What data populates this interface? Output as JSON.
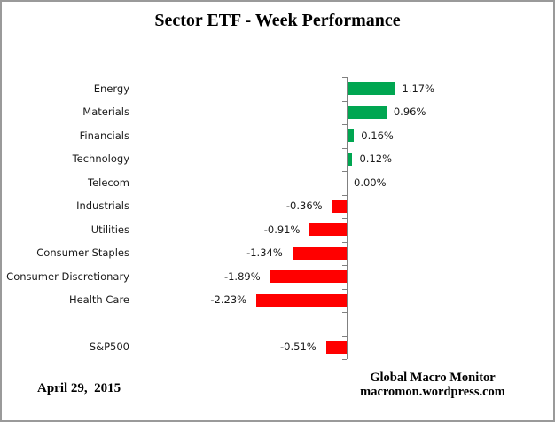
{
  "chart_data": {
    "type": "bar",
    "orientation": "horizontal",
    "title": "Sector ETF - Week Performance",
    "unit": "%",
    "xlim": [
      -2.5,
      1.5
    ],
    "grid": false,
    "legend": false,
    "rows": [
      {
        "label": "Energy",
        "value": 1.17,
        "display": "1.17%"
      },
      {
        "label": "Materials",
        "value": 0.96,
        "display": "0.96%"
      },
      {
        "label": "Financials",
        "value": 0.16,
        "display": "0.16%"
      },
      {
        "label": "Technology",
        "value": 0.12,
        "display": "0.12%"
      },
      {
        "label": "Telecom",
        "value": 0.0,
        "display": "0.00%"
      },
      {
        "label": "Industrials",
        "value": -0.36,
        "display": "-0.36%"
      },
      {
        "label": "Utilities",
        "value": -0.91,
        "display": "-0.91%"
      },
      {
        "label": "Consumer Staples",
        "value": -1.34,
        "display": "-1.34%"
      },
      {
        "label": "Consumer Discretionary",
        "value": -1.89,
        "display": "-1.89%"
      },
      {
        "label": "Health Care",
        "value": -2.23,
        "display": "-2.23%"
      },
      {
        "label": "",
        "value": null,
        "display": "",
        "spacer": true
      },
      {
        "label": "S&P500",
        "value": -0.51,
        "display": "-0.51%"
      }
    ],
    "colors": {
      "positive": "#00A651",
      "negative": "#FF0000",
      "axis": "#808080",
      "text": "#1a1a1a"
    }
  },
  "footer": {
    "date": "April 29,  2015",
    "credit_line1": "Global Macro Monitor",
    "credit_line2": "macromon.wordpress.com"
  }
}
